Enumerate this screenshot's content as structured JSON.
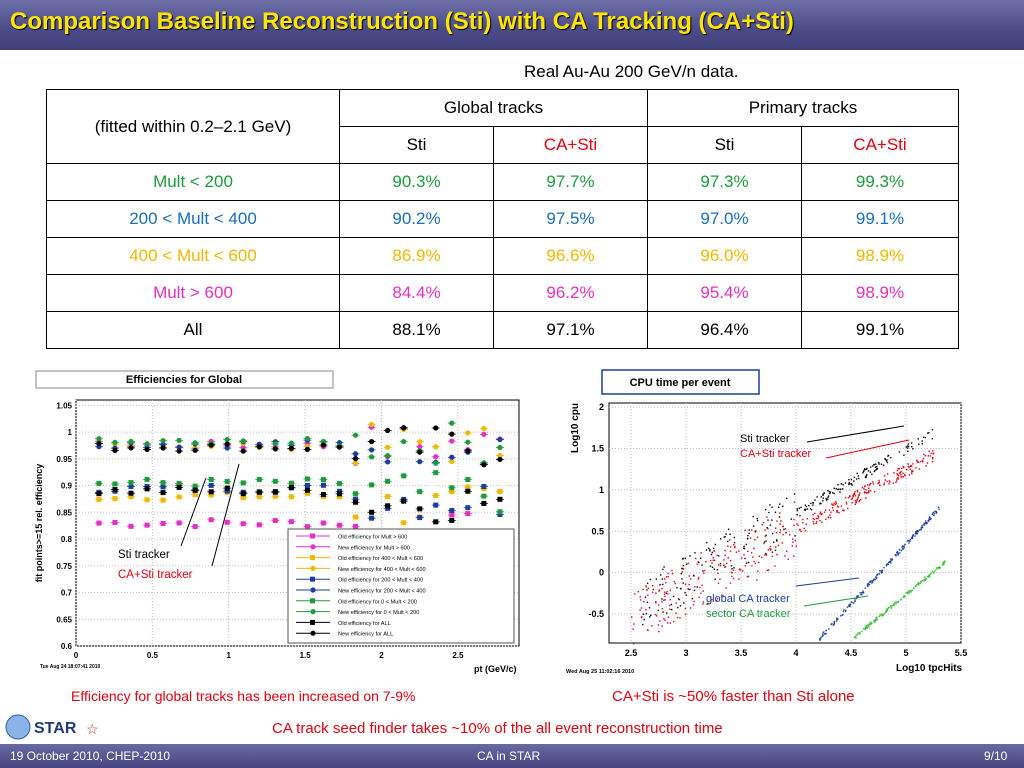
{
  "slide": {
    "title": "Comparison Baseline Reconstruction (Sti) with CA Tracking (CA+Sti)",
    "subtitle": "Real Au-Au 200 GeV/n data."
  },
  "table": {
    "corner": "(fitted within 0.2–2.1 GeV)",
    "group_global": "Global tracks",
    "group_primary": "Primary tracks",
    "sub_sti": "Sti",
    "sub_ca": "CA+Sti",
    "rows": [
      {
        "label": "Mult < 200",
        "color": "#1d9b3b",
        "values": [
          "90.3%",
          "97.7%",
          "97.3%",
          "99.3%"
        ]
      },
      {
        "label": "200 < Mult < 400",
        "color": "#1a6dbb",
        "values": [
          "90.2%",
          "97.5%",
          "97.0%",
          "99.1%"
        ]
      },
      {
        "label": "400 < Mult < 600",
        "color": "#f0b800",
        "values": [
          "86.9%",
          "96.6%",
          "96.0%",
          "98.9%"
        ]
      },
      {
        "label": "Mult > 600",
        "color": "#e52fc1",
        "values": [
          "84.4%",
          "96.2%",
          "95.4%",
          "98.9%"
        ]
      },
      {
        "label": "All",
        "color": "#000000",
        "values": [
          "88.1%",
          "97.1%",
          "96.4%",
          "99.1%"
        ]
      }
    ]
  },
  "eff_plot": {
    "title": "Efficiencies for Global",
    "ylabel": "fit points>=15 rel. efficiency",
    "xlabel": "pt (GeV/c)",
    "timestamp": "Tue Aug 24 18:07:41 2010",
    "xticks": [
      "0",
      "0.5",
      "1",
      "1.5",
      "2",
      "2.5"
    ],
    "yticks": [
      "0.6",
      "0.65",
      "0.7",
      "0.75",
      "0.8",
      "0.85",
      "0.9",
      "0.95",
      "1",
      "1.05"
    ],
    "legend": [
      "Old efficiency for Mult > 600",
      "New efficiency for Mult > 600",
      "Old efficiency for 400 < Mult < 600",
      "New efficiency for 400 < Mult < 600",
      "Old efficiency for 200 < Mult < 400",
      "New efficiency for 200 < Mult < 400",
      "Old efficiency for 0 < Mult < 200",
      "New efficiency for 0 < Mult < 200",
      "Old efficiency for ALL",
      "New efficiency for ALL"
    ],
    "ann_sti": "Sti tracker",
    "ann_ca": "CA+Sti tracker",
    "caption": "Efficiency for global tracks has been increased on 7-9%"
  },
  "cpu_plot": {
    "title": "CPU time per event",
    "ylabel": "Log10 cpu",
    "xlabel": "Log10 tpcHits",
    "timestamp": "Wed Aug 25 11:02:16 2010",
    "xticks": [
      "2.5",
      "3",
      "3.5",
      "4",
      "4.5",
      "5",
      "5.5"
    ],
    "yticks": [
      "-0.5",
      "0",
      "0.5",
      "1",
      "1.5",
      "2"
    ],
    "ann_sti": "Sti tracker",
    "ann_ca": "CA+Sti tracker",
    "ann_global": "global CA tracker",
    "ann_sector": "sector CA tracker",
    "caption": "CA+Sti is ~50% faster than Sti alone"
  },
  "bottom_caption": "CA track seed finder takes ~10% of the all event reconstruction time",
  "footer": {
    "left": "19 October 2010, CHEP-2010",
    "center": "CA in STAR",
    "right": "9/10"
  },
  "logo": "STAR"
}
